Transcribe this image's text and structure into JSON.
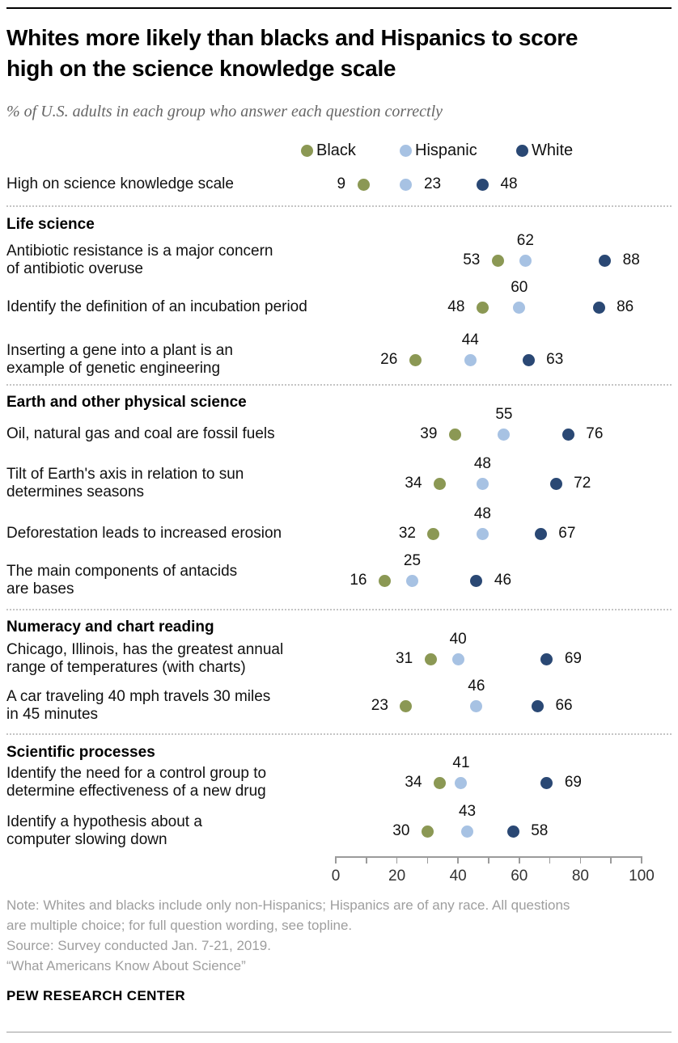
{
  "header": {
    "title_lines": [
      "Whites more likely than blacks and Hispanics to score",
      "high on the science knowledge scale"
    ],
    "subtitle": "% of U.S. adults in each group who answer each question correctly"
  },
  "legend": {
    "items": [
      {
        "label": "Black",
        "color": "#8B9854"
      },
      {
        "label": "Hispanic",
        "color": "#A7C2E3"
      },
      {
        "label": "White",
        "color": "#2A4874"
      }
    ]
  },
  "chart_data": {
    "type": "scatter",
    "subtype": "dot-plot",
    "xlim": [
      0,
      100
    ],
    "xticks": [
      0,
      20,
      40,
      60,
      80,
      100
    ],
    "grid": false,
    "legend_position": "top",
    "series": [
      "Black",
      "Hispanic",
      "White"
    ],
    "colors": {
      "black": "#8B9854",
      "hispanic": "#A7C2E3",
      "white": "#2A4874"
    },
    "sections": [
      {
        "header": null,
        "rows": [
          {
            "label_lines": [
              "High on science knowledge scale"
            ],
            "values": {
              "black": 9,
              "hispanic": 23,
              "white": 48
            },
            "label_pos": {
              "black": "left",
              "hispanic": "right",
              "white": "right"
            }
          }
        ]
      },
      {
        "header": "Life science",
        "rows": [
          {
            "label_lines": [
              "Antibiotic resistance is a major concern",
              "of antibiotic overuse"
            ],
            "values": {
              "black": 53,
              "hispanic": 62,
              "white": 88
            },
            "label_pos": {
              "black": "left",
              "hispanic": "above",
              "white": "right"
            }
          },
          {
            "label_lines": [
              "Identify the definition of an incubation period"
            ],
            "values": {
              "black": 48,
              "hispanic": 60,
              "white": 86
            },
            "label_pos": {
              "black": "left",
              "hispanic": "above",
              "white": "right"
            }
          },
          {
            "label_lines": [
              "Inserting a gene into a plant is an",
              "example of genetic engineering"
            ],
            "values": {
              "black": 26,
              "hispanic": 44,
              "white": 63
            },
            "label_pos": {
              "black": "left",
              "hispanic": "above",
              "white": "right"
            }
          }
        ]
      },
      {
        "header": "Earth and other physical science",
        "rows": [
          {
            "label_lines": [
              "Oil, natural gas and coal are fossil fuels"
            ],
            "values": {
              "black": 39,
              "hispanic": 55,
              "white": 76
            },
            "label_pos": {
              "black": "left",
              "hispanic": "above",
              "white": "right"
            }
          },
          {
            "label_lines": [
              "Tilt of Earth's axis in relation to sun",
              "determines seasons"
            ],
            "values": {
              "black": 34,
              "hispanic": 48,
              "white": 72
            },
            "label_pos": {
              "black": "left",
              "hispanic": "above",
              "white": "right"
            }
          },
          {
            "label_lines": [
              "Deforestation leads to increased erosion"
            ],
            "values": {
              "black": 32,
              "hispanic": 48,
              "white": 67
            },
            "label_pos": {
              "black": "left",
              "hispanic": "above",
              "white": "right"
            }
          },
          {
            "label_lines": [
              "The main components of antacids",
              "are bases"
            ],
            "values": {
              "black": 16,
              "hispanic": 25,
              "white": 46
            },
            "label_pos": {
              "black": "left",
              "hispanic": "above",
              "white": "right"
            }
          }
        ]
      },
      {
        "header": "Numeracy and chart reading",
        "rows": [
          {
            "label_lines": [
              "Chicago, Illinois, has the greatest annual",
              "range of temperatures (with charts)"
            ],
            "values": {
              "black": 31,
              "hispanic": 40,
              "white": 69
            },
            "label_pos": {
              "black": "left",
              "hispanic": "above",
              "white": "right"
            }
          },
          {
            "label_lines": [
              "A car traveling 40 mph travels 30 miles",
              "in 45 minutes"
            ],
            "values": {
              "black": 23,
              "hispanic": 46,
              "white": 66
            },
            "label_pos": {
              "black": "left",
              "hispanic": "above",
              "white": "right"
            }
          }
        ]
      },
      {
        "header": "Scientific processes",
        "rows": [
          {
            "label_lines": [
              "Identify the need for a control group to",
              "determine effectiveness of a new drug"
            ],
            "values": {
              "black": 34,
              "hispanic": 41,
              "white": 69
            },
            "label_pos": {
              "black": "left",
              "hispanic": "above",
              "white": "right"
            }
          },
          {
            "label_lines": [
              "Identify a hypothesis about a",
              "computer slowing down"
            ],
            "values": {
              "black": 30,
              "hispanic": 43,
              "white": 58
            },
            "label_pos": {
              "black": "left",
              "hispanic": "above",
              "white": "right"
            }
          }
        ]
      }
    ]
  },
  "footer": {
    "note_lines": [
      "Note: Whites and blacks include only non-Hispanics; Hispanics are of any race. All questions",
      "are multiple choice; for full question wording, see topline.",
      "Source: Survey conducted Jan. 7-21, 2019.",
      "“What Americans Know About Science”"
    ],
    "brand": "PEW RESEARCH CENTER"
  }
}
